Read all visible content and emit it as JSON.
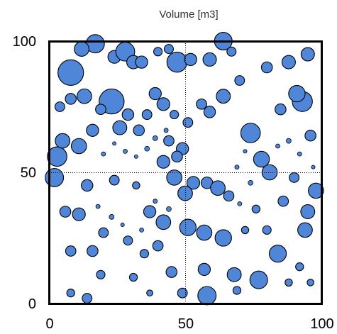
{
  "chart_data": {
    "type": "scatter",
    "title": "Volume [m3]",
    "xlabel": "",
    "ylabel": "",
    "xlim": [
      0,
      100
    ],
    "ylim": [
      0,
      100
    ],
    "xticks": [
      "0",
      "50",
      "100"
    ],
    "yticks": [
      "0",
      "50",
      "100"
    ],
    "grid": false,
    "reference_lines": {
      "x": 50,
      "y": 50
    },
    "legend": "none",
    "marker_color": "#4f86d8",
    "marker_edge_color": "#000000",
    "point_count_estimate": 500,
    "points": [
      {
        "x": 8,
        "y": 88,
        "size": 4.2
      },
      {
        "x": 17,
        "y": 99,
        "size": 3.0
      },
      {
        "x": 12,
        "y": 97,
        "size": 2.4
      },
      {
        "x": 24,
        "y": 94,
        "size": 2.1
      },
      {
        "x": 28,
        "y": 96,
        "size": 3.1
      },
      {
        "x": 23,
        "y": 77,
        "size": 4.1
      },
      {
        "x": 31,
        "y": 92,
        "size": 2.2
      },
      {
        "x": 34,
        "y": 92,
        "size": 2.0
      },
      {
        "x": 40,
        "y": 96,
        "size": 1.4
      },
      {
        "x": 44,
        "y": 97,
        "size": 1.5
      },
      {
        "x": 47,
        "y": 92,
        "size": 3.3
      },
      {
        "x": 52,
        "y": 93,
        "size": 2.0
      },
      {
        "x": 64,
        "y": 100,
        "size": 2.9
      },
      {
        "x": 59,
        "y": 93,
        "size": 2.2
      },
      {
        "x": 67,
        "y": 96,
        "size": 1.5
      },
      {
        "x": 80,
        "y": 90,
        "size": 1.8
      },
      {
        "x": 88,
        "y": 92,
        "size": 2.2
      },
      {
        "x": 95,
        "y": 95,
        "size": 2.2
      },
      {
        "x": 64,
        "y": 79,
        "size": 2.3
      },
      {
        "x": 70,
        "y": 85,
        "size": 1.6
      },
      {
        "x": 74,
        "y": 65,
        "size": 3.2
      },
      {
        "x": 78,
        "y": 55,
        "size": 2.6
      },
      {
        "x": 93,
        "y": 77,
        "size": 3.3
      },
      {
        "x": 91,
        "y": 80,
        "size": 2.7
      },
      {
        "x": 85,
        "y": 74,
        "size": 1.8
      },
      {
        "x": 96,
        "y": 64,
        "size": 1.8
      },
      {
        "x": 3,
        "y": 56,
        "size": 3.2
      },
      {
        "x": 5,
        "y": 62,
        "size": 2.4
      },
      {
        "x": 2,
        "y": 48,
        "size": 3.0
      },
      {
        "x": 13,
        "y": 79,
        "size": 2.4
      },
      {
        "x": 8,
        "y": 78,
        "size": 1.8
      },
      {
        "x": 4,
        "y": 75,
        "size": 1.6
      },
      {
        "x": 11,
        "y": 60,
        "size": 2.5
      },
      {
        "x": 16,
        "y": 66,
        "size": 2.0
      },
      {
        "x": 19,
        "y": 74,
        "size": 1.7
      },
      {
        "x": 26,
        "y": 67,
        "size": 2.3
      },
      {
        "x": 29,
        "y": 72,
        "size": 1.9
      },
      {
        "x": 33,
        "y": 66,
        "size": 1.8
      },
      {
        "x": 36,
        "y": 72,
        "size": 1.6
      },
      {
        "x": 39,
        "y": 80,
        "size": 2.0
      },
      {
        "x": 42,
        "y": 76,
        "size": 2.1
      },
      {
        "x": 46,
        "y": 72,
        "size": 1.4
      },
      {
        "x": 56,
        "y": 76,
        "size": 1.7
      },
      {
        "x": 59,
        "y": 73,
        "size": 1.9
      },
      {
        "x": 51,
        "y": 69,
        "size": 1.6
      },
      {
        "x": 44,
        "y": 62,
        "size": 1.7
      },
      {
        "x": 49,
        "y": 59,
        "size": 2.0
      },
      {
        "x": 47,
        "y": 56,
        "size": 1.8
      },
      {
        "x": 42,
        "y": 54,
        "size": 2.1
      },
      {
        "x": 46,
        "y": 48,
        "size": 2.5
      },
      {
        "x": 53,
        "y": 46,
        "size": 2.1
      },
      {
        "x": 58,
        "y": 46,
        "size": 1.9
      },
      {
        "x": 50,
        "y": 42,
        "size": 2.4
      },
      {
        "x": 62,
        "y": 44,
        "size": 2.4
      },
      {
        "x": 66,
        "y": 41,
        "size": 1.7
      },
      {
        "x": 81,
        "y": 50,
        "size": 2.5
      },
      {
        "x": 90,
        "y": 48,
        "size": 1.6
      },
      {
        "x": 86,
        "y": 39,
        "size": 1.7
      },
      {
        "x": 98,
        "y": 43,
        "size": 2.5
      },
      {
        "x": 95,
        "y": 35,
        "size": 2.3
      },
      {
        "x": 94,
        "y": 28,
        "size": 2.4
      },
      {
        "x": 84,
        "y": 19,
        "size": 2.8
      },
      {
        "x": 77,
        "y": 9,
        "size": 2.9
      },
      {
        "x": 68,
        "y": 11,
        "size": 2.3
      },
      {
        "x": 64,
        "y": 25,
        "size": 2.7
      },
      {
        "x": 57,
        "y": 27,
        "size": 2.5
      },
      {
        "x": 51,
        "y": 29,
        "size": 2.7
      },
      {
        "x": 57,
        "y": 13,
        "size": 2.0
      },
      {
        "x": 58,
        "y": 3,
        "size": 3.0
      },
      {
        "x": 45,
        "y": 12,
        "size": 1.8
      },
      {
        "x": 40,
        "y": 22,
        "size": 1.7
      },
      {
        "x": 35,
        "y": 19,
        "size": 1.4
      },
      {
        "x": 29,
        "y": 24,
        "size": 1.5
      },
      {
        "x": 20,
        "y": 27,
        "size": 1.6
      },
      {
        "x": 11,
        "y": 34,
        "size": 2.1
      },
      {
        "x": 6,
        "y": 35,
        "size": 1.8
      },
      {
        "x": 14,
        "y": 45,
        "size": 1.9
      },
      {
        "x": 24,
        "y": 47,
        "size": 1.6
      },
      {
        "x": 32,
        "y": 45,
        "size": 1.2
      },
      {
        "x": 37,
        "y": 35,
        "size": 2.0
      },
      {
        "x": 42,
        "y": 31,
        "size": 2.4
      },
      {
        "x": 8,
        "y": 20,
        "size": 1.7
      },
      {
        "x": 16,
        "y": 20,
        "size": 1.8
      },
      {
        "x": 19,
        "y": 11,
        "size": 1.4
      },
      {
        "x": 14,
        "y": 2,
        "size": 1.6
      },
      {
        "x": 8,
        "y": 4,
        "size": 1.3
      },
      {
        "x": 31,
        "y": 10,
        "size": 1.3
      },
      {
        "x": 37,
        "y": 4,
        "size": 1.0
      },
      {
        "x": 49,
        "y": 4,
        "size": 1.6
      },
      {
        "x": 69,
        "y": 5,
        "size": 1.3
      },
      {
        "x": 92,
        "y": 14,
        "size": 1.3
      },
      {
        "x": 96,
        "y": 8,
        "size": 1.1
      },
      {
        "x": 88,
        "y": 8,
        "size": 1.2
      },
      {
        "x": 80,
        "y": 28,
        "size": 1.4
      },
      {
        "x": 76,
        "y": 36,
        "size": 1.3
      },
      {
        "x": 72,
        "y": 28,
        "size": 1.2
      },
      {
        "x": 32,
        "y": 56,
        "size": 0.6
      },
      {
        "x": 28,
        "y": 58,
        "size": 0.7
      },
      {
        "x": 36,
        "y": 59,
        "size": 0.8
      },
      {
        "x": 20,
        "y": 57,
        "size": 0.7
      },
      {
        "x": 24,
        "y": 61,
        "size": 0.6
      },
      {
        "x": 39,
        "y": 63,
        "size": 0.8
      },
      {
        "x": 43,
        "y": 66,
        "size": 0.7
      },
      {
        "x": 18,
        "y": 37,
        "size": 0.7
      },
      {
        "x": 23,
        "y": 33,
        "size": 0.8
      },
      {
        "x": 27,
        "y": 30,
        "size": 0.6
      },
      {
        "x": 34,
        "y": 28,
        "size": 0.7
      },
      {
        "x": 39,
        "y": 39,
        "size": 0.7
      },
      {
        "x": 44,
        "y": 36,
        "size": 0.8
      },
      {
        "x": 70,
        "y": 38,
        "size": 0.7
      },
      {
        "x": 74,
        "y": 46,
        "size": 0.8
      },
      {
        "x": 69,
        "y": 52,
        "size": 0.7
      },
      {
        "x": 72,
        "y": 58,
        "size": 0.6
      },
      {
        "x": 84,
        "y": 60,
        "size": 0.7
      },
      {
        "x": 88,
        "y": 62,
        "size": 0.8
      },
      {
        "x": 92,
        "y": 57,
        "size": 0.7
      },
      {
        "x": 97,
        "y": 52,
        "size": 0.6
      }
    ]
  }
}
